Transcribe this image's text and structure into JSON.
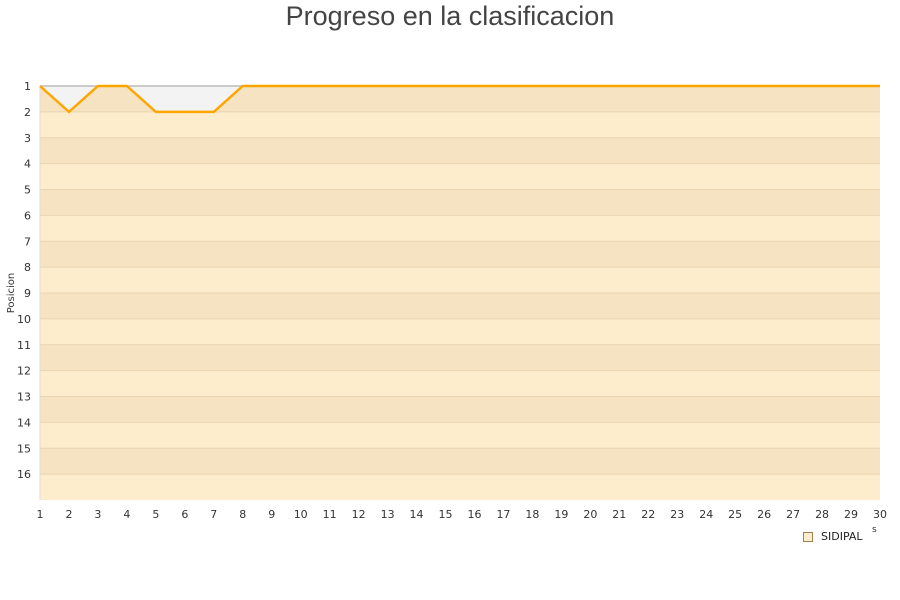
{
  "chart_data": {
    "type": "line",
    "title": "Progreso en la clasificacion",
    "ylabel": "Posicion",
    "xlabel": "",
    "x": [
      1,
      2,
      3,
      4,
      5,
      6,
      7,
      8,
      9,
      10,
      11,
      12,
      13,
      14,
      15,
      16,
      17,
      18,
      19,
      20,
      21,
      22,
      23,
      24,
      25,
      26,
      27,
      28,
      29,
      30
    ],
    "series": [
      {
        "name": "SIDIPAL",
        "values": [
          1,
          2,
          1,
          1,
          2,
          2,
          2,
          1,
          1,
          1,
          1,
          1,
          1,
          1,
          1,
          1,
          1,
          1,
          1,
          1,
          1,
          1,
          1,
          1,
          1,
          1,
          1,
          1,
          1,
          1
        ]
      }
    ],
    "xlim": [
      1,
      30
    ],
    "ylim": [
      1,
      17
    ],
    "y_inverted": true,
    "yticks": [
      1,
      2,
      3,
      4,
      5,
      6,
      7,
      8,
      9,
      10,
      11,
      12,
      13,
      14,
      15,
      16
    ],
    "legend_position": "bottom-right",
    "colors": {
      "line": "#ffa500",
      "band_dark": "#f6e3c2",
      "band_light": "#feedcc",
      "above_line": "#f3f3f3"
    }
  },
  "legend_extra": "s"
}
